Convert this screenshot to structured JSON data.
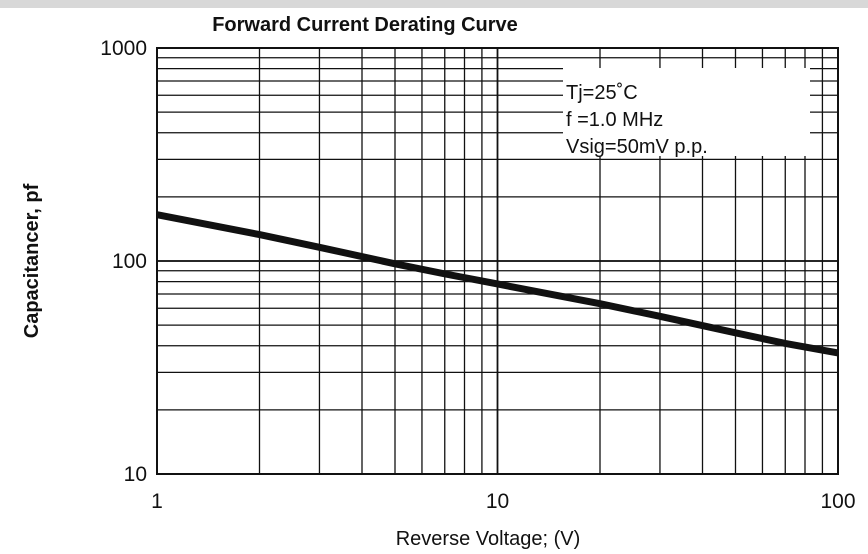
{
  "chart_data": {
    "type": "line",
    "title": "Forward Current Derating Curve",
    "xlabel": "Reverse Voltage; (V)",
    "ylabel": "Capacitancer, pf",
    "xscale": "log",
    "yscale": "log",
    "xlim": [
      1,
      100
    ],
    "ylim": [
      10,
      1000
    ],
    "x_ticks": [
      1,
      10,
      100
    ],
    "x_tick_labels": [
      "1",
      "10",
      "100"
    ],
    "y_ticks": [
      10,
      100,
      1000
    ],
    "y_tick_labels": [
      "10",
      "100",
      "1000"
    ],
    "grid": true,
    "series": [
      {
        "x": [
          1,
          2,
          3,
          5,
          7,
          10,
          20,
          30,
          50,
          70,
          100
        ],
        "y": [
          165,
          133,
          116,
          97,
          87,
          78,
          63,
          55,
          46,
          41,
          37
        ]
      }
    ],
    "annotation": {
      "lines": [
        "Tj=25˚C",
        "f =1.0 MHz",
        "Vsig=50mV p.p."
      ],
      "placement": "top-right"
    },
    "colors": {
      "line": "#111111",
      "grid": "#111111",
      "background": "#ffffff"
    }
  }
}
